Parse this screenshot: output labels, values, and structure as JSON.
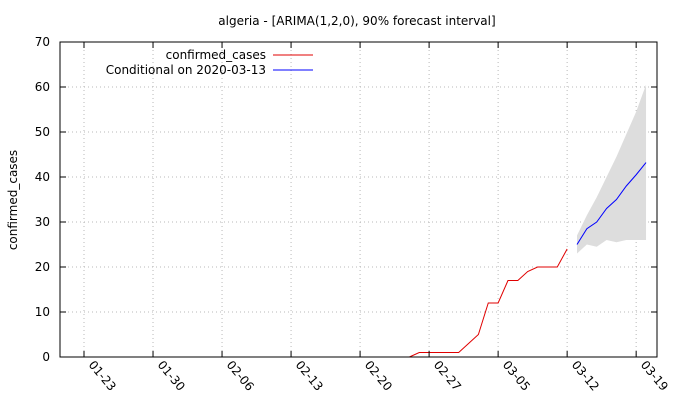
{
  "chart_data": {
    "type": "line",
    "title": "algeria -  [ARIMA(1,2,0), 90% forecast interval]",
    "ylabel": "confirmed_cases",
    "xlabel": "",
    "ylim": [
      0,
      70
    ],
    "yticks": [
      0,
      10,
      20,
      30,
      40,
      50,
      60,
      70
    ],
    "x_ticks": [
      "01-23",
      "01-30",
      "02-06",
      "02-13",
      "02-20",
      "02-27",
      "03-05",
      "03-12",
      "03-19"
    ],
    "grid": true,
    "legend_position": "top-left",
    "series": [
      {
        "name": "confirmed_cases",
        "color": "#e00000",
        "x": [
          "02-25",
          "02-26",
          "02-27",
          "02-28",
          "02-29",
          "03-01",
          "03-02",
          "03-03",
          "03-04",
          "03-05",
          "03-06",
          "03-07",
          "03-08",
          "03-09",
          "03-10",
          "03-11",
          "03-12"
        ],
        "y": [
          0,
          1,
          1,
          1,
          1,
          1,
          3,
          5,
          12,
          12,
          17,
          17,
          19,
          20,
          20,
          20,
          24
        ]
      },
      {
        "name": "Conditional on 2020-03-13",
        "color": "#0000ff",
        "x": [
          "03-13",
          "03-14",
          "03-15",
          "03-16",
          "03-17",
          "03-18",
          "03-19",
          "03-20"
        ],
        "y": [
          25,
          28.5,
          30,
          33,
          35,
          38,
          40.5,
          43.2
        ]
      }
    ],
    "forecast_interval": {
      "color": "#dddddd",
      "x": [
        "03-13",
        "03-14",
        "03-15",
        "03-16",
        "03-17",
        "03-18",
        "03-19",
        "03-20"
      ],
      "lower": [
        23,
        25,
        24.5,
        26,
        25.5,
        26,
        26,
        26
      ],
      "upper": [
        27,
        31.5,
        35.5,
        40,
        44.5,
        49.5,
        54.5,
        60.5
      ]
    }
  }
}
